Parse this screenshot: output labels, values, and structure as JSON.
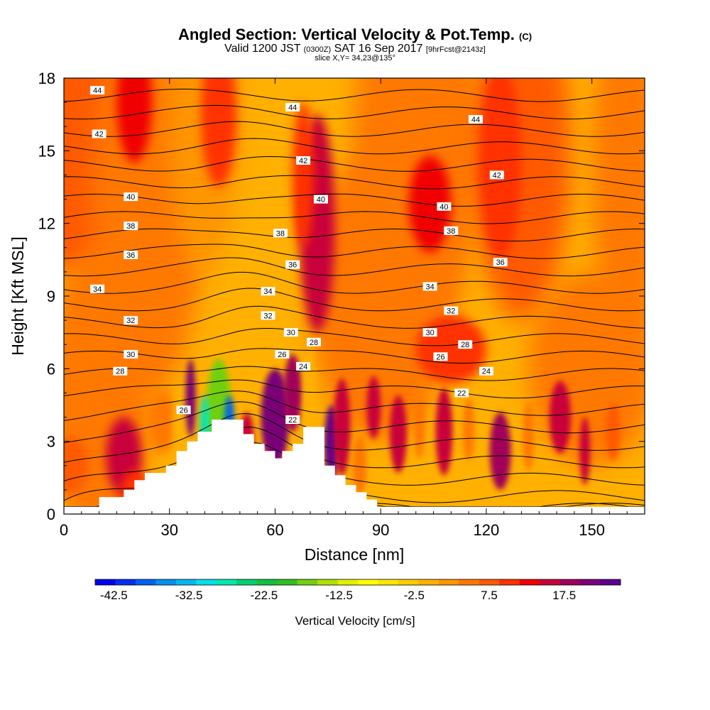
{
  "title": {
    "main": "Angled Section: Vertical Velocity & Pot.Temp.",
    "units": "(C)",
    "valid_prefix": "Valid 1200 JST",
    "valid_z": "(0300Z)",
    "valid_date": "SAT 16 Sep 2017",
    "forecast": "[9hrFcst@2143z]",
    "slice": "slice X,Y= 34,23@135°"
  },
  "chart_data": {
    "type": "heatmap",
    "xlabel": "Distance [nm]",
    "ylabel": "Height [Kft MSL]",
    "xlim": [
      0,
      165
    ],
    "ylim": [
      0,
      18
    ],
    "x_ticks": [
      0,
      30,
      60,
      90,
      120,
      150
    ],
    "y_ticks": [
      0,
      3,
      6,
      9,
      12,
      15,
      18
    ],
    "colorbar": {
      "label": "Vertical Velocity [cm/s]",
      "tick_labels": [
        "-42.5",
        "-32.5",
        "-22.5",
        "-12.5",
        "-2.5",
        "7.5",
        "17.5"
      ],
      "tick_values": [
        -42.5,
        -32.5,
        -22.5,
        -12.5,
        -2.5,
        7.5,
        17.5
      ],
      "range": [
        -45,
        25
      ],
      "step": 2.5,
      "colors": [
        "#0000f0",
        "#0030f0",
        "#0060f0",
        "#0090f0",
        "#00b8f0",
        "#00e0e8",
        "#00e8b0",
        "#00d070",
        "#10c040",
        "#30c020",
        "#70d010",
        "#b0e000",
        "#e0f000",
        "#ffff00",
        "#ffe600",
        "#ffcc00",
        "#ffb000",
        "#ff9600",
        "#ff7800",
        "#ff5a00",
        "#ff3000",
        "#f00000",
        "#c8003a",
        "#a0005a",
        "#7a0078",
        "#5c0090"
      ]
    },
    "contours": {
      "variable": "Potential temperature (C)",
      "levels": [
        20,
        21,
        22,
        23,
        24,
        25,
        26,
        27,
        28,
        29,
        30,
        31,
        32,
        33,
        34,
        35,
        36,
        37,
        38,
        39,
        40,
        41,
        42,
        43,
        44,
        45
      ],
      "labels": [
        {
          "text": "44",
          "x": 9.5,
          "y": 17.5
        },
        {
          "text": "44",
          "x": 65,
          "y": 16.8
        },
        {
          "text": "44",
          "x": 117,
          "y": 16.3
        },
        {
          "text": "42",
          "x": 10,
          "y": 15.7
        },
        {
          "text": "42",
          "x": 68,
          "y": 14.6
        },
        {
          "text": "42",
          "x": 123,
          "y": 14.0
        },
        {
          "text": "40",
          "x": 19,
          "y": 13.1
        },
        {
          "text": "40",
          "x": 73,
          "y": 13.0
        },
        {
          "text": "40",
          "x": 108,
          "y": 12.7
        },
        {
          "text": "38",
          "x": 19,
          "y": 11.9
        },
        {
          "text": "38",
          "x": 61.5,
          "y": 11.6
        },
        {
          "text": "38",
          "x": 110,
          "y": 11.7
        },
        {
          "text": "36",
          "x": 19,
          "y": 10.7
        },
        {
          "text": "36",
          "x": 65,
          "y": 10.3
        },
        {
          "text": "36",
          "x": 124,
          "y": 10.4
        },
        {
          "text": "34",
          "x": 9.5,
          "y": 9.3
        },
        {
          "text": "34",
          "x": 58,
          "y": 9.2
        },
        {
          "text": "34",
          "x": 104,
          "y": 9.4
        },
        {
          "text": "32",
          "x": 19,
          "y": 8.0
        },
        {
          "text": "32",
          "x": 58,
          "y": 8.2
        },
        {
          "text": "32",
          "x": 110,
          "y": 8.4
        },
        {
          "text": "30",
          "x": 19,
          "y": 6.6
        },
        {
          "text": "30",
          "x": 64.5,
          "y": 7.5
        },
        {
          "text": "30",
          "x": 104,
          "y": 7.5
        },
        {
          "text": "28",
          "x": 16,
          "y": 5.9
        },
        {
          "text": "28",
          "x": 71,
          "y": 7.1
        },
        {
          "text": "28",
          "x": 114,
          "y": 7.0
        },
        {
          "text": "26",
          "x": 34,
          "y": 4.3
        },
        {
          "text": "26",
          "x": 62,
          "y": 6.6
        },
        {
          "text": "26",
          "x": 107,
          "y": 6.5
        },
        {
          "text": "24",
          "x": 68,
          "y": 6.1
        },
        {
          "text": "24",
          "x": 120,
          "y": 5.9
        },
        {
          "text": "22",
          "x": 65,
          "y": 3.9
        },
        {
          "text": "22",
          "x": 113,
          "y": 5.0
        }
      ]
    },
    "terrain_top_kft": [
      [
        0,
        0.3
      ],
      [
        10,
        0.7
      ],
      [
        17,
        1.0
      ],
      [
        20,
        1.4
      ],
      [
        23,
        1.7
      ],
      [
        29,
        2.0
      ],
      [
        32,
        2.6
      ],
      [
        35,
        3.0
      ],
      [
        38,
        3.4
      ],
      [
        42,
        3.9
      ],
      [
        51,
        3.3
      ],
      [
        54,
        2.9
      ],
      [
        57,
        2.6
      ],
      [
        60,
        2.3
      ],
      [
        62,
        2.6
      ],
      [
        65,
        2.9
      ],
      [
        68,
        3.6
      ],
      [
        74,
        2.0
      ],
      [
        77,
        1.6
      ],
      [
        80,
        1.2
      ],
      [
        83,
        0.9
      ],
      [
        86,
        0.6
      ],
      [
        89,
        0.3
      ],
      [
        165,
        0.3
      ]
    ]
  }
}
